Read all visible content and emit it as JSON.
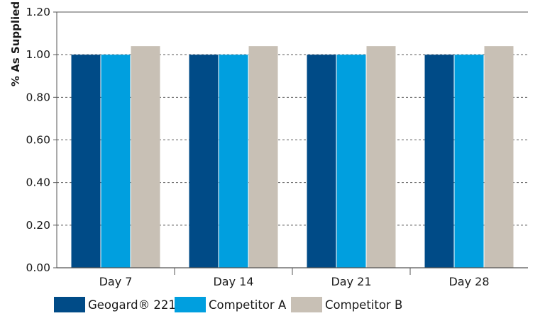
{
  "chart_data": {
    "type": "bar",
    "title": "",
    "xlabel": "",
    "ylabel": "% As Supplied",
    "ylim": [
      0,
      1.2
    ],
    "yticks": [
      0,
      0.2,
      0.4,
      0.6,
      0.8,
      1.0,
      1.2
    ],
    "ytick_labels": [
      "0.00",
      "0.20",
      "0.40",
      "0.60",
      "0.80",
      "1.00",
      "1.20"
    ],
    "categories": [
      "Day 7",
      "Day 14",
      "Day 21",
      "Day 28"
    ],
    "series": [
      {
        "name": "Geogard® 221",
        "values": [
          1.0,
          1.0,
          1.0,
          1.0
        ],
        "color": "#004b87"
      },
      {
        "name": "Competitor A",
        "values": [
          1.0,
          1.0,
          1.0,
          1.0
        ],
        "color": "#009fdf"
      },
      {
        "name": "Competitor B",
        "values": [
          1.04,
          1.04,
          1.04,
          1.04
        ],
        "color": "#c8c0b5"
      }
    ],
    "grid": true,
    "grid_style": "dashed",
    "legend_position": "bottom-left",
    "axis_color": "#555555"
  }
}
